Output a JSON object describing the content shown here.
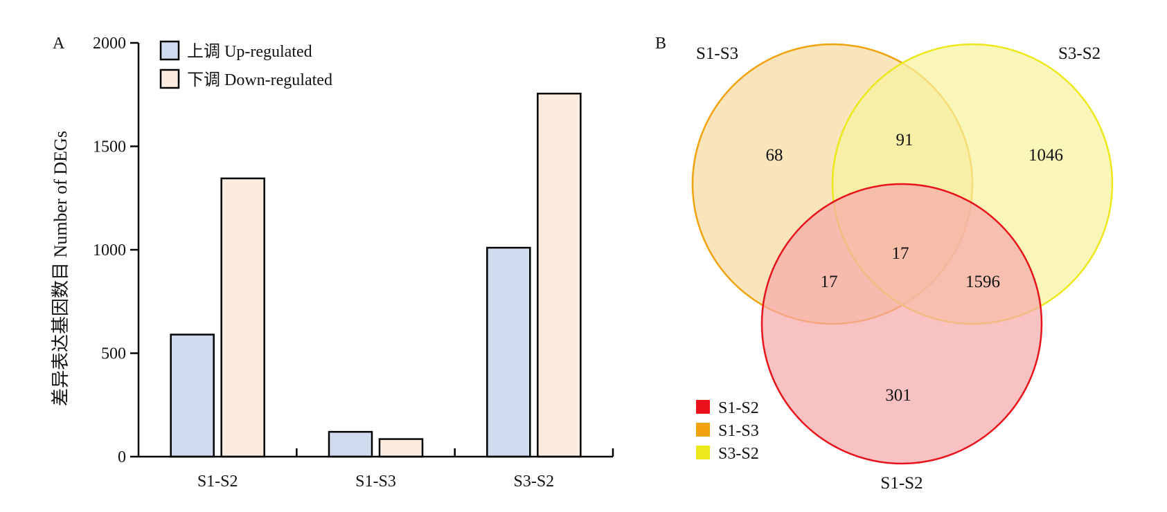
{
  "chart_data": [
    {
      "type": "bar",
      "panel_label": "A",
      "ylabel": "差异表达基因数目 Number of DEGs",
      "xlabel": "",
      "ylim": [
        0,
        2000
      ],
      "yticks": [
        "0",
        "500",
        "1000",
        "1500",
        "2000"
      ],
      "categories": [
        "S1-S2",
        "S1-S3",
        "S3-S2"
      ],
      "series": [
        {
          "name": "上调 Up-regulated",
          "values": [
            590,
            120,
            1010
          ],
          "color": "#d0dcee"
        },
        {
          "name": "下调 Down-regulated",
          "values": [
            1345,
            85,
            1755
          ],
          "color": "#fcece0"
        }
      ],
      "legend_position": "top-left",
      "grid": false
    },
    {
      "type": "venn",
      "panel_label": "B",
      "sets": [
        {
          "name": "S1-S2",
          "color": "#e8131b",
          "fill": "#f5a9ab"
        },
        {
          "name": "S1-S3",
          "color": "#f0a20f",
          "fill": "#f8d9a2"
        },
        {
          "name": "S3-S2",
          "color": "#ece81c",
          "fill": "#f6f29e"
        }
      ],
      "regions": {
        "S1-S3_only": "68",
        "S3-S2_only": "1046",
        "S1-S2_only": "301",
        "S1-S3_and_S3-S2": "91",
        "S1-S3_and_S1-S2": "17",
        "S3-S2_and_S1-S2": "1596",
        "all_three": "17"
      },
      "legend_position": "bottom-left"
    }
  ]
}
